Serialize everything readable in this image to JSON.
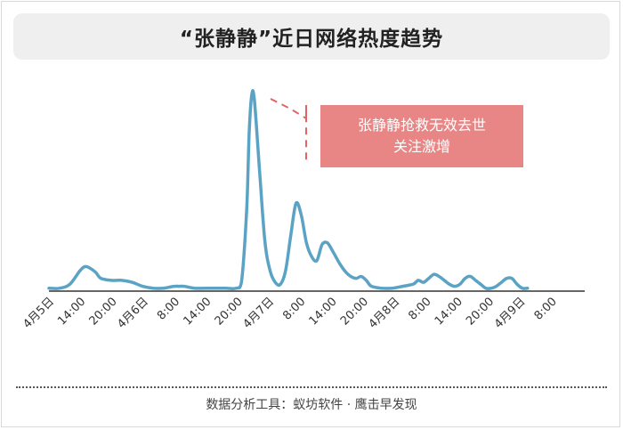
{
  "title": "“张静静”近日网络热度趋势",
  "footer": "数据分析工具：蚁坊软件 · 鹰击早发现",
  "colors": {
    "line": "#5ba3c4",
    "annotation_box": "#e88686",
    "annotation_line": "#e06666",
    "axis": "#333333",
    "title_bg": "#efefef"
  },
  "chart_data": {
    "type": "line",
    "title": "“张静静”近日网络热度趋势",
    "xlabel": "",
    "ylabel": "",
    "grid": false,
    "legend": "none",
    "x_tick_labels": [
      "4月5日",
      "14:00",
      "20:00",
      "4月6日",
      "8:00",
      "14:00",
      "20:00",
      "4月7日",
      "8:00",
      "14:00",
      "20:00",
      "4月8日",
      "8:00",
      "14:00",
      "20:00",
      "4月9日",
      "8:00"
    ],
    "x_range_hours": [
      0,
      103
    ],
    "y_range": [
      0,
      100
    ],
    "series": [
      {
        "values": [
          [
            0,
            1
          ],
          [
            2,
            1
          ],
          [
            4,
            3
          ],
          [
            6,
            10
          ],
          [
            7,
            12
          ],
          [
            8,
            11
          ],
          [
            9,
            9
          ],
          [
            10,
            6
          ],
          [
            12,
            5
          ],
          [
            14,
            5
          ],
          [
            16,
            4
          ],
          [
            18,
            2
          ],
          [
            20,
            1
          ],
          [
            22,
            1
          ],
          [
            24,
            2
          ],
          [
            25,
            2
          ],
          [
            26,
            2
          ],
          [
            28,
            1
          ],
          [
            30,
            1
          ],
          [
            32,
            1
          ],
          [
            34,
            1
          ],
          [
            36,
            1
          ],
          [
            37,
            4
          ],
          [
            38,
            40
          ],
          [
            38.5,
            80
          ],
          [
            39,
            99
          ],
          [
            39.5,
            96
          ],
          [
            40.5,
            60
          ],
          [
            41.5,
            25
          ],
          [
            42.5,
            10
          ],
          [
            43.5,
            4
          ],
          [
            44.5,
            3
          ],
          [
            45.5,
            10
          ],
          [
            46.5,
            28
          ],
          [
            47.5,
            44
          ],
          [
            48.5,
            38
          ],
          [
            49.5,
            24
          ],
          [
            50.5,
            17
          ],
          [
            51.5,
            15
          ],
          [
            52.5,
            23
          ],
          [
            53.5,
            24
          ],
          [
            54.5,
            20
          ],
          [
            56,
            13
          ],
          [
            57.5,
            8
          ],
          [
            59,
            6
          ],
          [
            60,
            7
          ],
          [
            61,
            5
          ],
          [
            62,
            2
          ],
          [
            64,
            1
          ],
          [
            66,
            1
          ],
          [
            68,
            2
          ],
          [
            70,
            3
          ],
          [
            71,
            5
          ],
          [
            72,
            4
          ],
          [
            73,
            6
          ],
          [
            74,
            8
          ],
          [
            75,
            7
          ],
          [
            76,
            5
          ],
          [
            77,
            3
          ],
          [
            78,
            2
          ],
          [
            79,
            3
          ],
          [
            80,
            6
          ],
          [
            81,
            7
          ],
          [
            82,
            5
          ],
          [
            83,
            3
          ],
          [
            84,
            1
          ],
          [
            85,
            1
          ],
          [
            86,
            2
          ],
          [
            87,
            4
          ],
          [
            88,
            6
          ],
          [
            89,
            6
          ],
          [
            90,
            3
          ],
          [
            91,
            1
          ],
          [
            92,
            1
          ]
        ]
      }
    ],
    "annotations": [
      {
        "text_lines": [
          "张静静抢救无效去世",
          "关注激增"
        ],
        "points_to_hour": 49
      }
    ]
  }
}
